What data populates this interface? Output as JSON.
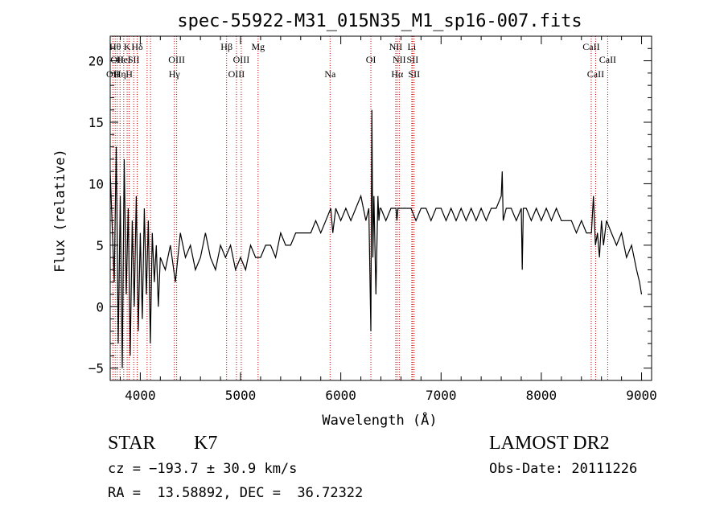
{
  "chart_data": {
    "type": "line",
    "title": "spec-55922-M31_015N35_M1_sp16-007.fits",
    "xlabel": "Wavelength (Å)",
    "ylabel": "Flux (relative)",
    "xlim": [
      3700,
      9100
    ],
    "ylim": [
      -6,
      22
    ],
    "xticks": [
      4000,
      5000,
      6000,
      7000,
      8000,
      9000
    ],
    "xticklabels": [
      "4000",
      "5000",
      "6000",
      "7000",
      "8000",
      "9000"
    ],
    "yticks": [
      -5,
      0,
      5,
      10,
      15,
      20
    ],
    "yticklabels": [
      "−5",
      "0",
      "5",
      "10",
      "15",
      "20"
    ],
    "x_minor_step": 200,
    "y_minor_step": 1,
    "grid": false,
    "series": [
      {
        "name": "flux",
        "color": "#000000",
        "x": [
          3700,
          3740,
          3760,
          3780,
          3800,
          3820,
          3840,
          3860,
          3880,
          3900,
          3920,
          3940,
          3960,
          3980,
          4000,
          4020,
          4040,
          4060,
          4080,
          4100,
          4120,
          4140,
          4160,
          4180,
          4200,
          4250,
          4300,
          4350,
          4400,
          4450,
          4500,
          4550,
          4600,
          4650,
          4700,
          4750,
          4800,
          4850,
          4900,
          4950,
          5000,
          5050,
          5100,
          5150,
          5200,
          5250,
          5300,
          5350,
          5400,
          5450,
          5500,
          5550,
          5600,
          5650,
          5700,
          5750,
          5800,
          5850,
          5900,
          5920,
          5950,
          6000,
          6050,
          6100,
          6150,
          6200,
          6250,
          6280,
          6300,
          6310,
          6320,
          6330,
          6350,
          6370,
          6380,
          6390,
          6400,
          6450,
          6500,
          6550,
          6560,
          6570,
          6600,
          6650,
          6700,
          6750,
          6800,
          6850,
          6900,
          6950,
          7000,
          7050,
          7100,
          7150,
          7200,
          7250,
          7300,
          7350,
          7400,
          7450,
          7500,
          7550,
          7600,
          7610,
          7620,
          7650,
          7700,
          7750,
          7800,
          7810,
          7820,
          7850,
          7900,
          7950,
          8000,
          8050,
          8100,
          8150,
          8200,
          8250,
          8300,
          8350,
          8400,
          8450,
          8500,
          8520,
          8540,
          8560,
          8580,
          8600,
          8620,
          8650,
          8700,
          8750,
          8800,
          8850,
          8900,
          8950,
          8980,
          9000
        ],
        "y": [
          11,
          2,
          13,
          -3,
          9,
          -5,
          12,
          1,
          8,
          -4,
          7,
          0,
          9,
          -2,
          6,
          -1,
          8,
          1,
          7,
          -3,
          6,
          2,
          5,
          0,
          4,
          3,
          5,
          2,
          6,
          4,
          5,
          3,
          4,
          6,
          4,
          3,
          5,
          4,
          5,
          3,
          4,
          3,
          5,
          4,
          4,
          5,
          5,
          4,
          6,
          5,
          5,
          6,
          6,
          6,
          6,
          7,
          6,
          7,
          8,
          6,
          8,
          7,
          8,
          7,
          8,
          9,
          7,
          8,
          -2,
          16,
          4,
          9,
          1,
          9,
          7,
          8,
          8,
          7,
          8,
          8,
          7,
          8,
          8,
          8,
          8,
          7,
          8,
          8,
          7,
          8,
          8,
          7,
          8,
          7,
          8,
          7,
          8,
          7,
          8,
          7,
          8,
          8,
          9,
          11,
          7,
          8,
          8,
          7,
          8,
          3,
          8,
          8,
          7,
          8,
          7,
          8,
          7,
          8,
          7,
          7,
          7,
          6,
          7,
          6,
          6,
          9,
          5,
          6,
          4,
          7,
          5,
          7,
          6,
          5,
          6,
          4,
          5,
          3,
          2,
          1
        ],
        "cont": [
          0,
          0,
          0,
          0,
          0,
          0,
          0,
          0,
          0,
          0,
          0,
          0,
          0,
          0,
          0,
          0,
          0,
          0,
          0,
          0,
          0,
          0,
          0,
          0,
          0,
          0,
          0,
          0,
          0,
          0,
          0,
          0,
          0,
          0,
          0,
          0,
          0,
          0,
          0,
          0,
          0,
          0,
          0,
          0,
          0,
          0,
          0,
          0,
          0,
          0,
          0,
          0,
          0,
          0,
          0,
          0,
          0,
          0,
          0,
          0,
          0,
          0,
          0,
          0,
          0,
          0,
          0,
          0,
          0,
          0,
          0,
          0,
          0,
          0,
          0,
          0,
          0,
          0,
          0,
          0,
          0,
          0,
          0,
          0,
          0,
          0,
          0,
          0,
          0,
          0,
          0,
          0,
          0,
          0,
          0,
          0,
          0,
          0,
          0,
          0,
          0,
          0,
          0,
          0,
          0,
          0,
          0,
          0,
          0,
          0,
          0,
          0,
          0,
          0,
          0,
          0,
          0,
          0,
          0,
          0,
          0,
          0,
          0,
          0,
          0,
          0,
          0,
          0,
          0,
          0,
          0,
          0,
          0,
          0,
          0,
          0,
          0,
          0,
          0,
          0
        ]
      }
    ],
    "line_color": "#cc0000",
    "lines": [
      {
        "wl": 3727,
        "tier": 3,
        "label": "OII"
      },
      {
        "wl": 3750,
        "tier": 1,
        "label": "Hθ"
      },
      {
        "wl": 3770,
        "tier": 2,
        "label": "OII"
      },
      {
        "wl": 3798,
        "tier": 3,
        "label": "Hη"
      },
      {
        "wl": 3835,
        "tier": 2,
        "label": "HeI"
      },
      {
        "wl": 3869,
        "tier": 1,
        "label": "K"
      },
      {
        "wl": 3889,
        "tier": 3,
        "label": "H"
      },
      {
        "wl": 3934,
        "tier": 2,
        "label": "SII"
      },
      {
        "wl": 3969,
        "tier": 1,
        "label": "Hδ"
      },
      {
        "wl": 4068,
        "tier": 2,
        "label": ""
      },
      {
        "wl": 4102,
        "tier": 3,
        "label": ""
      },
      {
        "wl": 4340,
        "tier": 3,
        "label": "Hγ"
      },
      {
        "wl": 4363,
        "tier": 2,
        "label": "OIII"
      },
      {
        "wl": 4861,
        "tier": 1,
        "label": "Hβ"
      },
      {
        "wl": 4959,
        "tier": 3,
        "label": "OIII"
      },
      {
        "wl": 5007,
        "tier": 2,
        "label": "OIII"
      },
      {
        "wl": 5175,
        "tier": 1,
        "label": "Mg"
      },
      {
        "wl": 5893,
        "tier": 3,
        "label": "Na"
      },
      {
        "wl": 6300,
        "tier": 2,
        "label": "OI"
      },
      {
        "wl": 6548,
        "tier": 1,
        "label": "NII"
      },
      {
        "wl": 6563,
        "tier": 3,
        "label": "Hα"
      },
      {
        "wl": 6583,
        "tier": 2,
        "label": "NII"
      },
      {
        "wl": 6708,
        "tier": 1,
        "label": "Li"
      },
      {
        "wl": 6716,
        "tier": 2,
        "label": "SII"
      },
      {
        "wl": 6731,
        "tier": 3,
        "label": "SII"
      },
      {
        "wl": 8498,
        "tier": 1,
        "label": "CaII"
      },
      {
        "wl": 8542,
        "tier": 3,
        "label": "CaII"
      },
      {
        "wl": 8662,
        "tier": 2,
        "label": "CaII"
      }
    ]
  },
  "info": {
    "class": "STAR",
    "subclass": "K7",
    "survey": "LAMOST DR2",
    "cz": "cz = −193.7 ± 30.9 km/s",
    "obs_date": "Obs-Date: 20111226",
    "coords": "RA =  13.58892, DEC =  36.72322"
  }
}
